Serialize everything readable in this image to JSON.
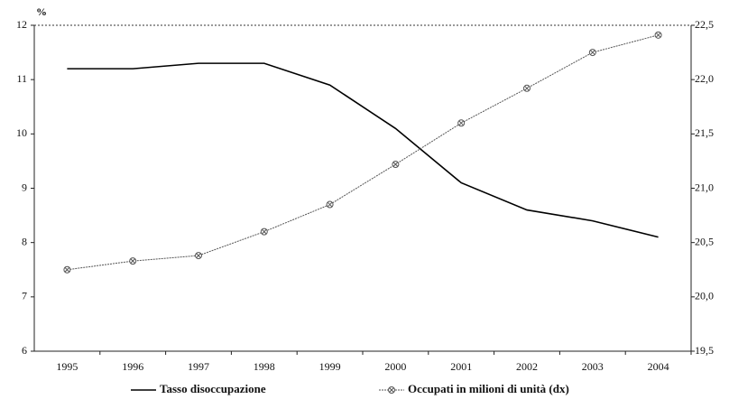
{
  "chart_data": {
    "type": "line",
    "y_unit_label": "%",
    "categories": [
      "1995",
      "1996",
      "1997",
      "1998",
      "1999",
      "2000",
      "2001",
      "2002",
      "2003",
      "2004"
    ],
    "series": [
      {
        "name": "Tasso disoccupazione",
        "color": "#000000",
        "values": [
          11.2,
          11.2,
          11.3,
          11.3,
          10.9,
          10.1,
          9.1,
          8.6,
          8.4,
          8.1
        ]
      },
      {
        "name": "Occupati in milioni di unità (dx)",
        "color": "#555555",
        "axis": "y2",
        "marker": "circle-x",
        "values": [
          20.25,
          20.33,
          20.38,
          20.6,
          20.85,
          21.22,
          21.6,
          21.92,
          22.25,
          22.41
        ]
      }
    ],
    "ylim": [
      6,
      12
    ],
    "yticks": [
      6,
      7,
      8,
      9,
      10,
      11,
      12
    ],
    "y2lim": [
      19.5,
      22.5
    ],
    "y2ticks": [
      {
        "value": 19.5,
        "label": "19,5"
      },
      {
        "value": 20.0,
        "label": "20,0"
      },
      {
        "value": 20.5,
        "label": "20,5"
      },
      {
        "value": 21.0,
        "label": "21,0"
      },
      {
        "value": 21.5,
        "label": "21,5"
      },
      {
        "value": 22.0,
        "label": "22,0"
      },
      {
        "value": 22.5,
        "label": "22,5"
      }
    ],
    "legend": "bottom"
  }
}
